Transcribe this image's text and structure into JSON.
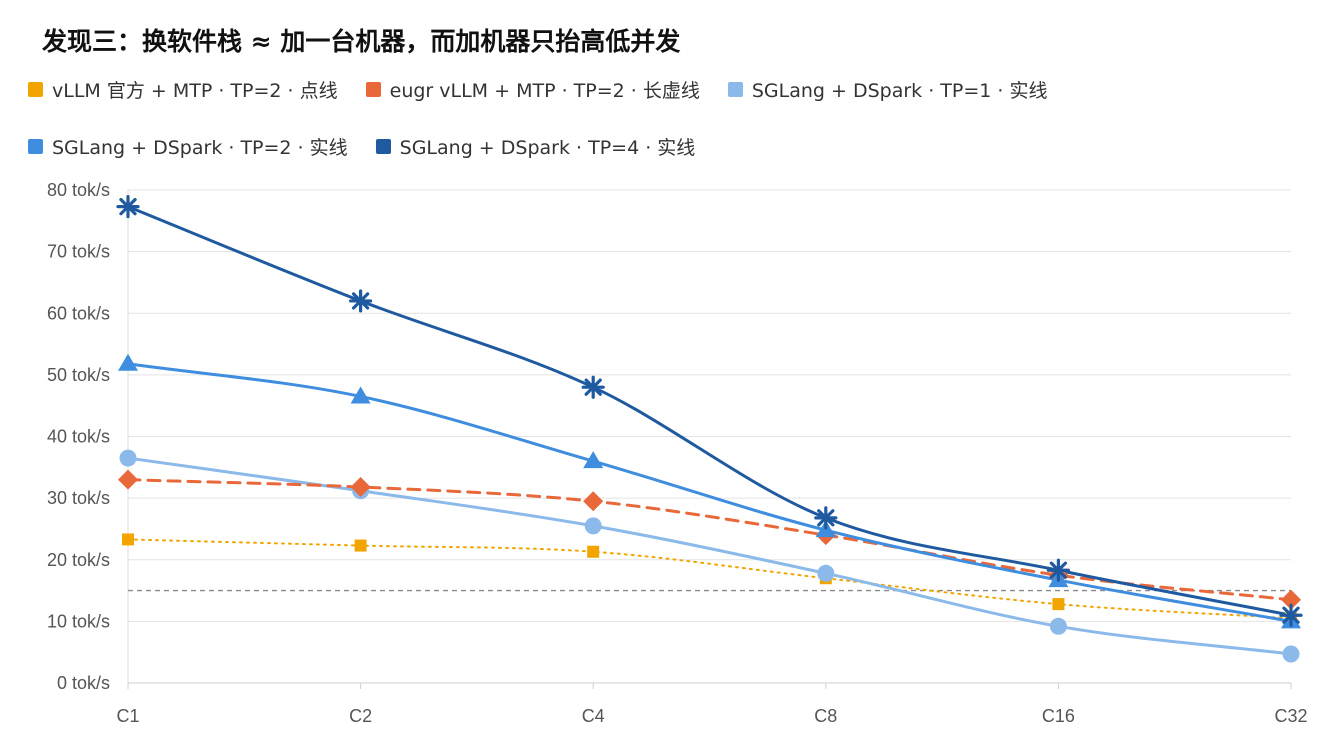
{
  "title": "发现三：换软件栈 ≈ 加一台机器，而加机器只抬高低并发",
  "chart_data": {
    "type": "line",
    "categories": [
      "C1",
      "C2",
      "C4",
      "C8",
      "C16",
      "C32"
    ],
    "ylim": [
      0,
      80
    ],
    "yticks": [
      "0 tok/s",
      "10 tok/s",
      "20 tok/s",
      "30 tok/s",
      "40 tok/s",
      "50 tok/s",
      "60 tok/s",
      "70 tok/s",
      "80 tok/s"
    ],
    "ytick_values": [
      0,
      10,
      20,
      30,
      40,
      50,
      60,
      70,
      80
    ],
    "grid": true,
    "legend_position": "top-left",
    "reference_line": 15,
    "series": [
      {
        "name": "vLLM 官方 + MTP · TP=2 · 点线",
        "color": "#f2a500",
        "marker": "square",
        "dash": "dotted",
        "values": [
          23.3,
          22.3,
          21.3,
          17.0,
          12.8,
          10.5
        ]
      },
      {
        "name": "eugr vLLM + MTP · TP=2 · 长虚线",
        "color": "#e8683a",
        "marker": "diamond",
        "dash": "dashed",
        "values": [
          33.0,
          31.8,
          29.5,
          24.0,
          17.5,
          13.5
        ]
      },
      {
        "name": "SGLang + DSpark · TP=1 · 实线",
        "color": "#8ab9ea",
        "marker": "circle",
        "dash": "solid",
        "values": [
          36.5,
          31.2,
          25.5,
          17.8,
          9.2,
          4.7
        ]
      },
      {
        "name": "SGLang + DSpark · TP=2 · 实线",
        "color": "#3f8ddf",
        "marker": "triangle",
        "dash": "solid",
        "values": [
          51.8,
          46.5,
          36.0,
          24.8,
          16.7,
          10.0
        ]
      },
      {
        "name": "SGLang + DSpark · TP=4 · 实线",
        "color": "#1f5aa0",
        "marker": "star",
        "dash": "solid",
        "values": [
          77.3,
          62.0,
          48.0,
          26.8,
          18.3,
          11.0
        ]
      }
    ]
  }
}
